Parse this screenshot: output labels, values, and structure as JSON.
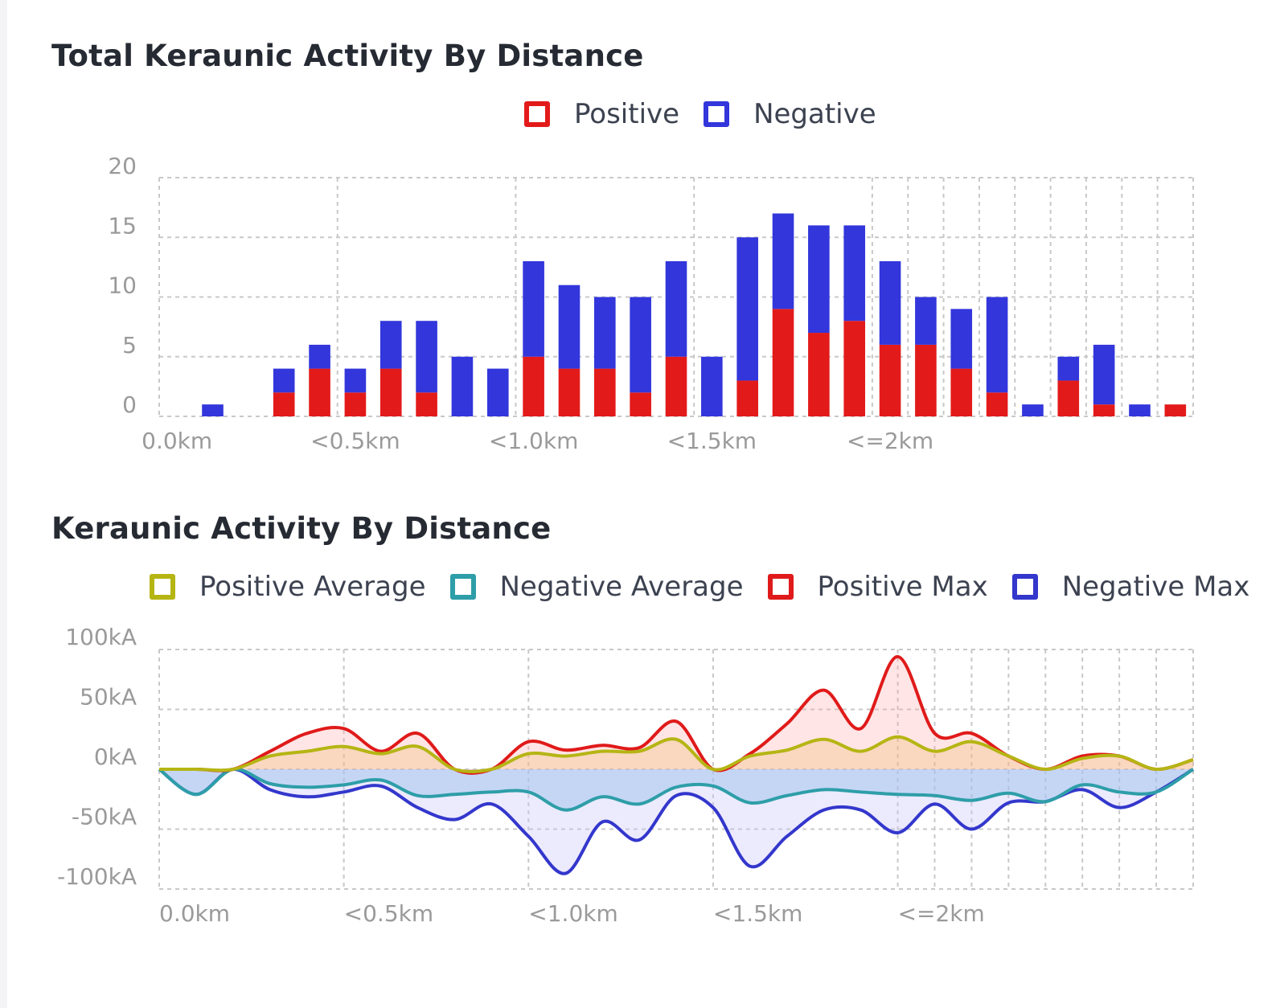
{
  "chart_data": [
    {
      "type": "bar",
      "stacked": true,
      "title": "Total Keraunic Activity By Distance",
      "legend_placement": "top-center",
      "grid": true,
      "ylim": [
        0,
        20
      ],
      "yticks": [
        "0",
        "5",
        "10",
        "15",
        "20"
      ],
      "xtick_labels": [
        "0.0km",
        "<0.5km",
        "<1.0km",
        "<1.5km",
        "<=2km"
      ],
      "xtick_indices": [
        0,
        5,
        10,
        15,
        20
      ],
      "bin_count": 29,
      "series": [
        {
          "name": "Positive",
          "color": "#e31a1a",
          "values": [
            0,
            0,
            0,
            2,
            4,
            2,
            4,
            2,
            0,
            0,
            5,
            4,
            4,
            2,
            5,
            0,
            3,
            9,
            7,
            8,
            6,
            6,
            4,
            2,
            0,
            3,
            1,
            0,
            1
          ]
        },
        {
          "name": "Negative",
          "color": "#3236db",
          "values": [
            0,
            1,
            0,
            2,
            2,
            2,
            4,
            6,
            5,
            4,
            8,
            7,
            6,
            8,
            8,
            5,
            12,
            8,
            9,
            8,
            7,
            4,
            5,
            8,
            1,
            2,
            5,
            1,
            0
          ]
        }
      ]
    },
    {
      "type": "area",
      "title": "Keraunic Activity By Distance",
      "legend_placement": "top-center",
      "grid": true,
      "ylim": [
        -100,
        100
      ],
      "yticks": [
        "100kA",
        "50kA",
        "0kA",
        "-50kA",
        "-100kA"
      ],
      "ytick_values": [
        100,
        50,
        0,
        -50,
        -100
      ],
      "xtick_labels": [
        "0.0km",
        "<0.5km",
        "<1.0km",
        "<1.5km",
        "<=2km"
      ],
      "xtick_indices": [
        0,
        5,
        10,
        15,
        20
      ],
      "point_count": 29,
      "series": [
        {
          "name": "Positive Average",
          "color": "#b5b514",
          "fill": "rgba(240,190,120,0.35)",
          "values": [
            0,
            0,
            0,
            11,
            15,
            19,
            13,
            19,
            0,
            0,
            13,
            11,
            15,
            15,
            25,
            0,
            11,
            16,
            25,
            15,
            27,
            15,
            23,
            11,
            0,
            9,
            11,
            0,
            8
          ]
        },
        {
          "name": "Negative Average",
          "color": "#2e9ea8",
          "fill": "rgba(150,190,235,0.45)",
          "values": [
            0,
            -21,
            0,
            -12,
            -15,
            -13,
            -9,
            -22,
            -21,
            -19,
            -19,
            -34,
            -23,
            -29,
            -15,
            -14,
            -28,
            -22,
            -17,
            -19,
            -21,
            -22,
            -26,
            -20,
            -27,
            -13,
            -19,
            -19,
            0
          ]
        },
        {
          "name": "Positive Max",
          "color": "#e01a1a",
          "fill": "rgba(255,170,170,0.3)",
          "values": [
            0,
            0,
            0,
            15,
            30,
            34,
            15,
            30,
            0,
            0,
            23,
            16,
            20,
            18,
            40,
            0,
            13,
            38,
            66,
            34,
            94,
            30,
            30,
            11,
            0,
            11,
            11,
            0,
            8
          ]
        },
        {
          "name": "Negative Max",
          "color": "#3337cc",
          "fill": "rgba(200,195,250,0.35)",
          "values": [
            0,
            -21,
            0,
            -17,
            -23,
            -19,
            -14,
            -32,
            -42,
            -29,
            -56,
            -87,
            -44,
            -59,
            -22,
            -32,
            -81,
            -56,
            -34,
            -34,
            -53,
            -29,
            -50,
            -28,
            -27,
            -17,
            -32,
            -19,
            0
          ]
        }
      ]
    }
  ]
}
